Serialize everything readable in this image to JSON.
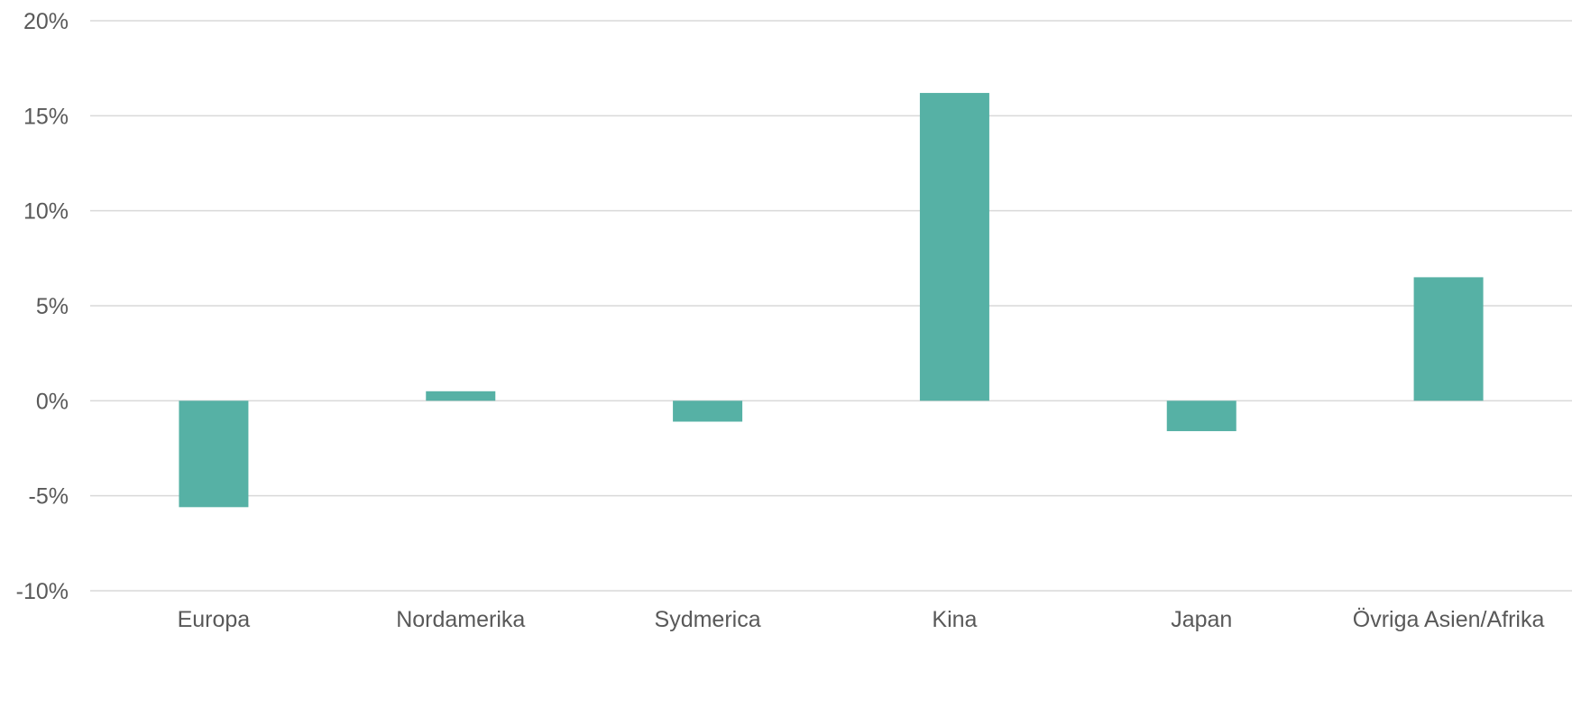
{
  "chart_data": {
    "type": "bar",
    "categories": [
      "Europa",
      "Nordamerika",
      "Sydmerica",
      "Kina",
      "Japan",
      "Övriga Asien/Afrika"
    ],
    "values": [
      -5.6,
      0.5,
      -1.1,
      16.2,
      -1.6,
      6.5
    ],
    "ylim": [
      -10,
      20
    ],
    "yticks": [
      20,
      15,
      10,
      5,
      0,
      -5,
      -10
    ],
    "ytick_labels": [
      "20%",
      "15%",
      "10%",
      "5%",
      "0%",
      "-5%",
      "-10%"
    ],
    "grid": true,
    "title": "",
    "xlabel": "",
    "ylabel": ""
  },
  "colors": {
    "bar": "#56b1a5",
    "grid": "#d9d9d9",
    "text": "#595959"
  }
}
